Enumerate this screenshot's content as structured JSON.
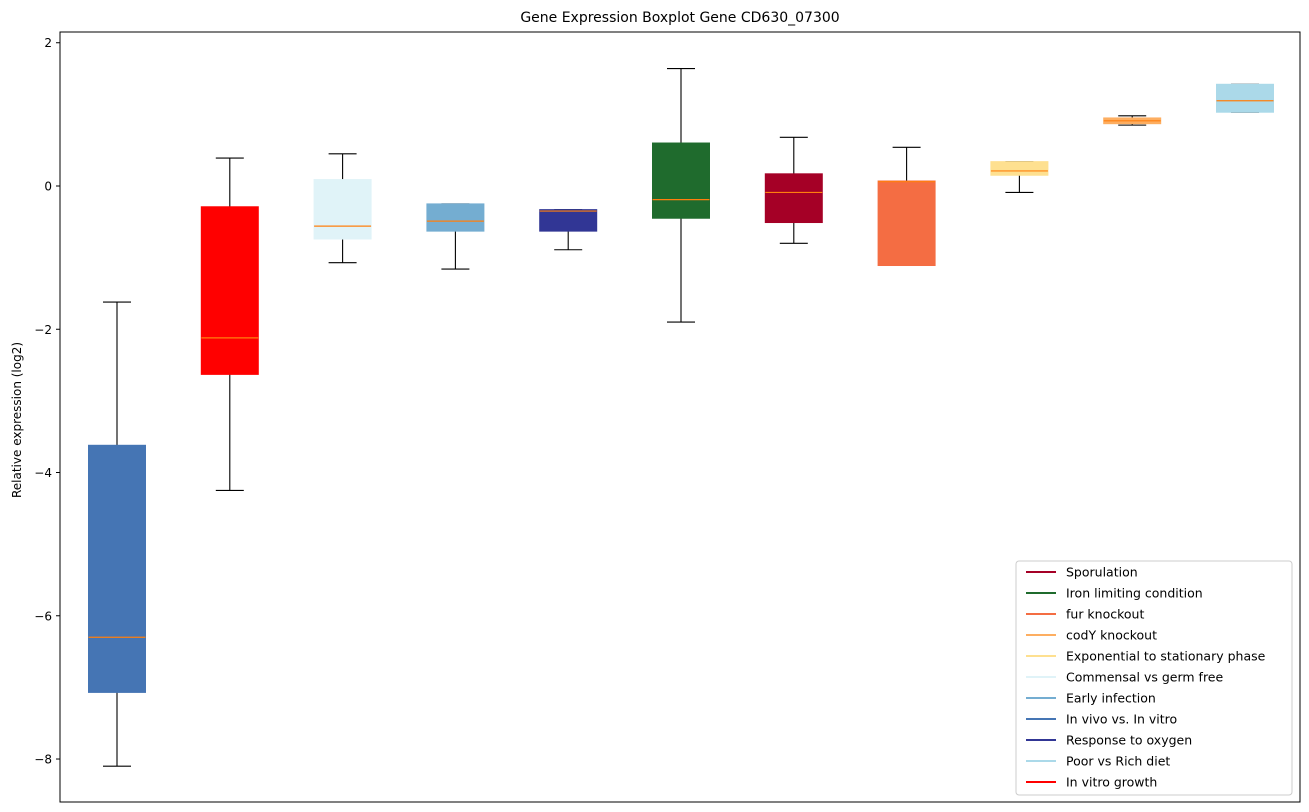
{
  "chart_data": {
    "type": "boxplot",
    "title": "Gene Expression Boxplot Gene CD630_07300",
    "xlabel": "",
    "ylabel": "Relative expression (log2)",
    "ylim": [
      -8.6,
      2.15
    ],
    "yticks": [
      -8,
      -6,
      -4,
      -2,
      0,
      2
    ],
    "grid": false,
    "legend_position": "bottom-right",
    "boxes": [
      {
        "color": "#4575b4",
        "whisker_low": -8.1,
        "q1": -7.07,
        "median": -6.3,
        "q3": -3.62,
        "whisker_high": -1.62
      },
      {
        "color": "#ff0000",
        "whisker_low": -4.25,
        "q1": -2.63,
        "median": -2.12,
        "q3": -0.29,
        "whisker_high": 0.39
      },
      {
        "color": "#e0f3f8",
        "whisker_low": -1.07,
        "q1": -0.74,
        "median": -0.56,
        "q3": 0.09,
        "whisker_high": 0.45
      },
      {
        "color": "#74add1",
        "whisker_low": -1.16,
        "q1": -0.63,
        "median": -0.49,
        "q3": -0.25,
        "whisker_high": -0.25
      },
      {
        "color": "#313695",
        "whisker_low": -0.89,
        "q1": -0.63,
        "median": -0.35,
        "q3": -0.33,
        "whisker_high": -0.33
      },
      {
        "color": "#1f6b2d",
        "whisker_low": -1.9,
        "q1": -0.45,
        "median": -0.19,
        "q3": 0.6,
        "whisker_high": 1.64
      },
      {
        "color": "#a50026",
        "whisker_low": -0.8,
        "q1": -0.51,
        "median": -0.09,
        "q3": 0.17,
        "whisker_high": 0.68
      },
      {
        "color": "#f46d43",
        "whisker_low": -1.11,
        "q1": -1.11,
        "median": 0.06,
        "q3": 0.07,
        "whisker_high": 0.54
      },
      {
        "color": "#fee090",
        "whisker_low": -0.09,
        "q1": 0.15,
        "median": 0.21,
        "q3": 0.34,
        "whisker_high": 0.34
      },
      {
        "color": "#fdae61",
        "whisker_low": 0.85,
        "q1": 0.87,
        "median": 0.91,
        "q3": 0.95,
        "whisker_high": 0.98
      },
      {
        "color": "#abd9e9",
        "whisker_low": 1.03,
        "q1": 1.03,
        "median": 1.19,
        "q3": 1.42,
        "whisker_high": 1.42
      }
    ],
    "median_color": "#ff7f0e",
    "legend": [
      {
        "label": "Sporulation",
        "color": "#a50026"
      },
      {
        "label": "Iron limiting condition",
        "color": "#1f6b2d"
      },
      {
        "label": "fur knockout",
        "color": "#f46d43"
      },
      {
        "label": "codY knockout",
        "color": "#fdae61"
      },
      {
        "label": "Exponential to stationary phase",
        "color": "#fee090"
      },
      {
        "label": "Commensal vs germ free",
        "color": "#e0f3f8"
      },
      {
        "label": "Early infection",
        "color": "#74add1"
      },
      {
        "label": "In vivo vs. In vitro",
        "color": "#4575b4"
      },
      {
        "label": "Response to oxygen",
        "color": "#313695"
      },
      {
        "label": "Poor vs Rich diet",
        "color": "#abd9e9"
      },
      {
        "label": "In vitro growth",
        "color": "#ff0000"
      }
    ]
  }
}
